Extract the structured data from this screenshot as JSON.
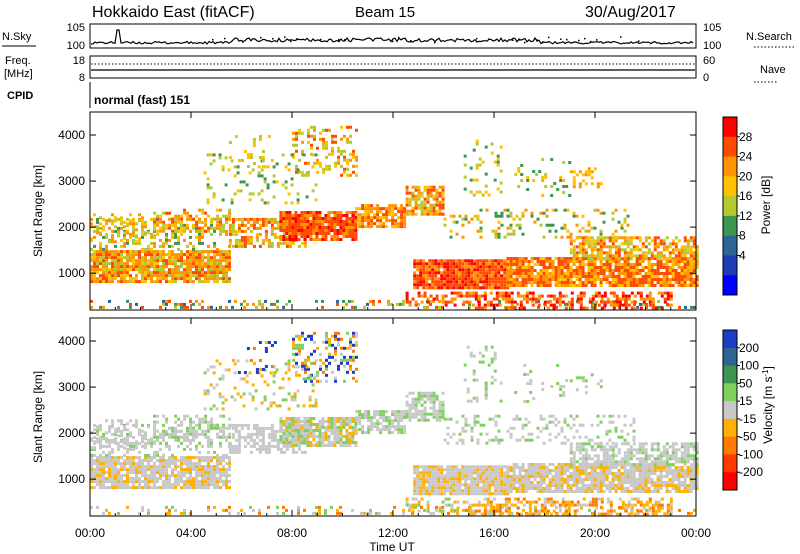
{
  "header": {
    "title": "Hokkaido East (fitACF)",
    "beam": "Beam 15",
    "date": "30/Aug/2017"
  },
  "noise_panel": {
    "left_label": "N.Sky",
    "left_ticks": [
      "10^5",
      "10^0"
    ],
    "right_ticks": [
      "10^5",
      "10^0"
    ],
    "right_label": "N.Search"
  },
  "freq_panel": {
    "left_label_line1": "Freq.",
    "left_label_line2": "[MHz]",
    "left_ticks": [
      "18",
      "8"
    ],
    "right_ticks": [
      "60",
      "0"
    ],
    "right_label": "Nave"
  },
  "cpid_panel": {
    "label": "CPID",
    "text": "normal (fast) 151"
  },
  "chart_data": [
    {
      "type": "heatmap",
      "name": "power",
      "ylabel": "Slant Range [km]",
      "ylim": [
        200,
        4500
      ],
      "yticks": [
        "4000",
        "3000",
        "2000",
        "1000"
      ],
      "xlim": [
        0,
        24
      ],
      "colorbar_label": "Power [dB]",
      "colorbar_ticks": [
        "28",
        "24",
        "20",
        "16",
        "12",
        "8",
        "4"
      ],
      "colorbar_colors": [
        "#ff0000",
        "#ff4a00",
        "#ff9400",
        "#ffc000",
        "#b4c832",
        "#3c9650",
        "#2f6496",
        "#1f3cb4",
        "#0000ff"
      ]
    },
    {
      "type": "heatmap",
      "name": "velocity",
      "ylabel": "Slant Range [km]",
      "ylim": [
        200,
        4500
      ],
      "yticks": [
        "4000",
        "3000",
        "2000",
        "1000"
      ],
      "xlim": [
        0,
        24
      ],
      "colorbar_label": "Velocity [m s",
      "colorbar_label_sup": "-1",
      "colorbar_label_end": "]",
      "colorbar_ticks": [
        "200",
        "100",
        "50",
        "15",
        "-15",
        "-50",
        "-100",
        "-200"
      ],
      "colorbar_colors": [
        "#1f3cc8",
        "#2f6490",
        "#3c9650",
        "#80d060",
        "#c8c8c8",
        "#ffb000",
        "#ff7a00",
        "#ff3a00",
        "#ff0000"
      ]
    }
  ],
  "xaxis": {
    "ticks": [
      "00:00",
      "04:00",
      "08:00",
      "12:00",
      "16:00",
      "20:00",
      "00:00"
    ],
    "label": "Time UT"
  }
}
